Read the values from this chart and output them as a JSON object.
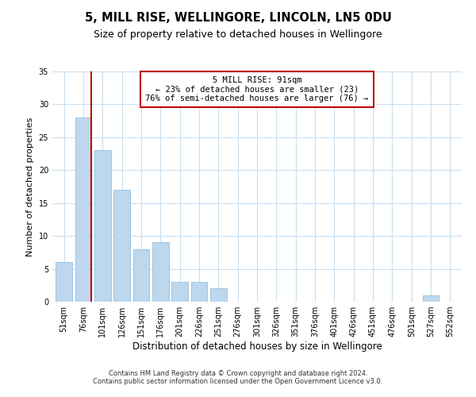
{
  "title": "5, MILL RISE, WELLINGORE, LINCOLN, LN5 0DU",
  "subtitle": "Size of property relative to detached houses in Wellingore",
  "xlabel": "Distribution of detached houses by size in Wellingore",
  "ylabel": "Number of detached properties",
  "bar_labels": [
    "51sqm",
    "76sqm",
    "101sqm",
    "126sqm",
    "151sqm",
    "176sqm",
    "201sqm",
    "226sqm",
    "251sqm",
    "276sqm",
    "301sqm",
    "326sqm",
    "351sqm",
    "376sqm",
    "401sqm",
    "426sqm",
    "451sqm",
    "476sqm",
    "501sqm",
    "527sqm",
    "552sqm"
  ],
  "bar_values": [
    6,
    28,
    23,
    17,
    8,
    9,
    3,
    3,
    2,
    0,
    0,
    0,
    0,
    0,
    0,
    0,
    0,
    0,
    0,
    1,
    0
  ],
  "bar_color": "#bdd7ee",
  "bar_edge_color": "#9ec6e0",
  "ylim": [
    0,
    35
  ],
  "yticks": [
    0,
    5,
    10,
    15,
    20,
    25,
    30,
    35
  ],
  "vline_color": "#c00000",
  "annotation_title": "5 MILL RISE: 91sqm",
  "annotation_line1": "← 23% of detached houses are smaller (23)",
  "annotation_line2": "76% of semi-detached houses are larger (76) →",
  "annotation_box_color": "#ffffff",
  "annotation_box_edge": "#c00000",
  "footer_line1": "Contains HM Land Registry data © Crown copyright and database right 2024.",
  "footer_line2": "Contains public sector information licensed under the Open Government Licence v3.0.",
  "background_color": "#ffffff",
  "grid_color": "#c8dff0",
  "title_fontsize": 10.5,
  "subtitle_fontsize": 9,
  "xlabel_fontsize": 8.5,
  "ylabel_fontsize": 8,
  "tick_fontsize": 7,
  "annotation_fontsize": 7.5,
  "footer_fontsize": 6
}
